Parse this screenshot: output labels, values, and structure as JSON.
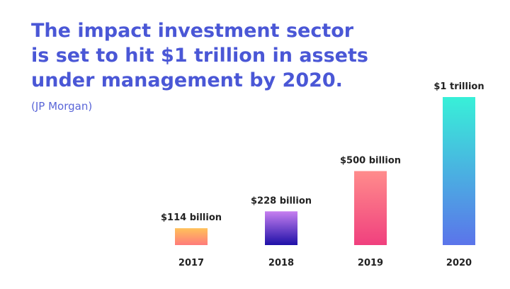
{
  "headline": {
    "lines": [
      "The impact investment sector",
      "is set to hit $1 trillion in assets",
      "under management by 2020."
    ]
  },
  "source": "(JP Morgan)",
  "colors": {
    "headline": "#4a57d6",
    "source": "#5a66d8"
  },
  "chart_data": {
    "type": "bar",
    "categories": [
      "2017",
      "2018",
      "2019",
      "2020"
    ],
    "values": [
      114,
      228,
      500,
      1000
    ],
    "unit": "billion",
    "data_labels": [
      "$114 billion",
      "$228 billion",
      "$500 billion",
      "$1 trillion"
    ],
    "bar_gradients": [
      [
        "#ffc25a",
        "#ff7a7a"
      ],
      [
        "#c77ff0",
        "#1e10a8"
      ],
      [
        "#ff8c8c",
        "#f0407e"
      ],
      [
        "#38f0d8",
        "#5b74ea"
      ]
    ],
    "ylim": [
      0,
      1000
    ],
    "grid": false,
    "legend": "none",
    "title": "",
    "xlabel": "",
    "ylabel": ""
  }
}
